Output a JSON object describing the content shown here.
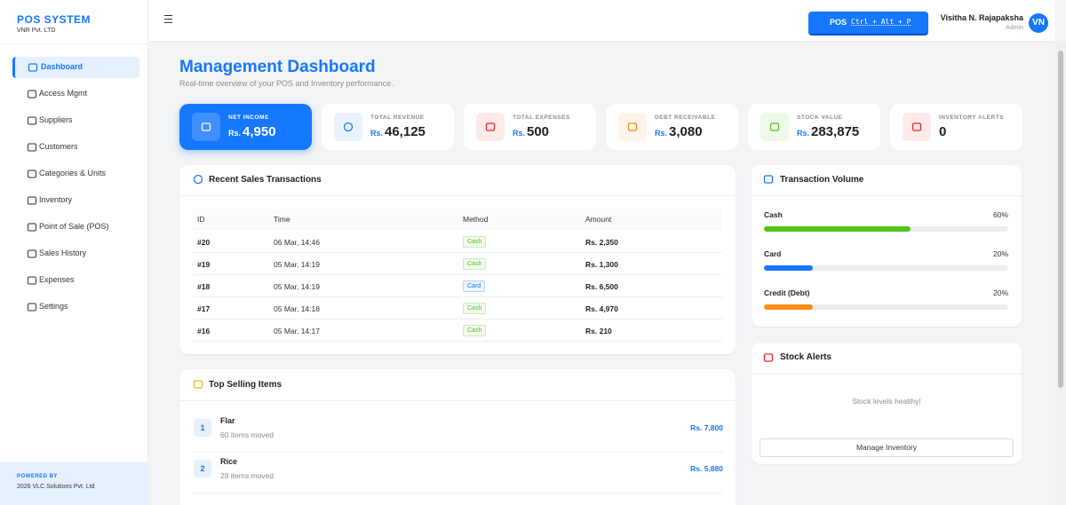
{
  "sidebar": {
    "brand": "POS SYSTEM",
    "company": "VNR Pvt. LTD",
    "nav": [
      "Dashboard",
      "Access Mgmt",
      "Suppliers",
      "Customers",
      "Categories & Units",
      "Inventory",
      "Point of Sale (POS)",
      "Sales History",
      "Expenses",
      "Settings"
    ],
    "active": 0,
    "footer": {
      "label": "POWERED BY",
      "text": "2026 VLC Solutions Pvt. Ltd"
    }
  },
  "topbar": {
    "pos_button": "POS",
    "shortcut": "Ctrl + Alt + P",
    "user_name": "Visitha N. Rajapaksha",
    "user_role": "Admin",
    "avatar": "VN"
  },
  "header": {
    "title": "Management Dashboard",
    "subtitle": "Real-time overview of your POS and Inventory performance."
  },
  "stats": [
    {
      "label": "NET INCOME",
      "currency": "Rs.",
      "value": "4,950",
      "color": "#ffffff"
    },
    {
      "label": "TOTAL REVENUE",
      "currency": "Rs.",
      "value": "46,125",
      "color": "#1677ff"
    },
    {
      "label": "TOTAL EXPENSES",
      "currency": "Rs.",
      "value": "500",
      "color": "#f5222d"
    },
    {
      "label": "DEBT RECEIVABLE",
      "currency": "Rs.",
      "value": "3,080",
      "color": "#fa8c16"
    },
    {
      "label": "STOCK VALUE",
      "currency": "Rs.",
      "value": "283,875",
      "color": "#52c41a"
    },
    {
      "label": "INVENTORY ALERTS",
      "value": "0",
      "color": "#f5222d"
    }
  ],
  "recent_sales": {
    "title": "Recent Sales Transactions",
    "columns": [
      "ID",
      "Time",
      "Method",
      "Amount"
    ],
    "rows": [
      {
        "id": "#20",
        "time": "06 Mar, 14:46",
        "method": "Cash",
        "amount": "Rs. 2,350",
        "method_color": "#52c41a"
      },
      {
        "id": "#19",
        "time": "05 Mar, 14:19",
        "method": "Cash",
        "amount": "Rs. 1,300",
        "method_color": "#52c41a"
      },
      {
        "id": "#18",
        "time": "05 Mar, 14:19",
        "method": "Card",
        "amount": "Rs. 6,500",
        "method_color": "#1677ff"
      },
      {
        "id": "#17",
        "time": "05 Mar, 14:18",
        "method": "Cash",
        "amount": "Rs. 4,970",
        "method_color": "#52c41a"
      },
      {
        "id": "#16",
        "time": "05 Mar, 14:17",
        "method": "Cash",
        "amount": "Rs. 210",
        "method_color": "#52c41a"
      }
    ]
  },
  "top_selling": {
    "title": "Top Selling Items",
    "items": [
      {
        "rank": 1,
        "name": "Flar",
        "moved": "60 items moved",
        "amount": "Rs. 7,800"
      },
      {
        "rank": 2,
        "name": "Rice",
        "moved": "28 items moved",
        "amount": "Rs. 5,880"
      }
    ]
  },
  "transaction_volume": {
    "title": "Transaction Volume",
    "methods": [
      {
        "name": "Cash",
        "percent": "60%",
        "color": "#52c41a"
      },
      {
        "name": "Card",
        "percent": "20%",
        "color": "#1677ff"
      },
      {
        "name": "Credit (Debt)",
        "percent": "20%",
        "color": "#fa8c16"
      }
    ]
  },
  "stock_alerts": {
    "title": "Stock Alerts",
    "message": "Stock levels healthy!",
    "button": "Manage Inventory"
  }
}
